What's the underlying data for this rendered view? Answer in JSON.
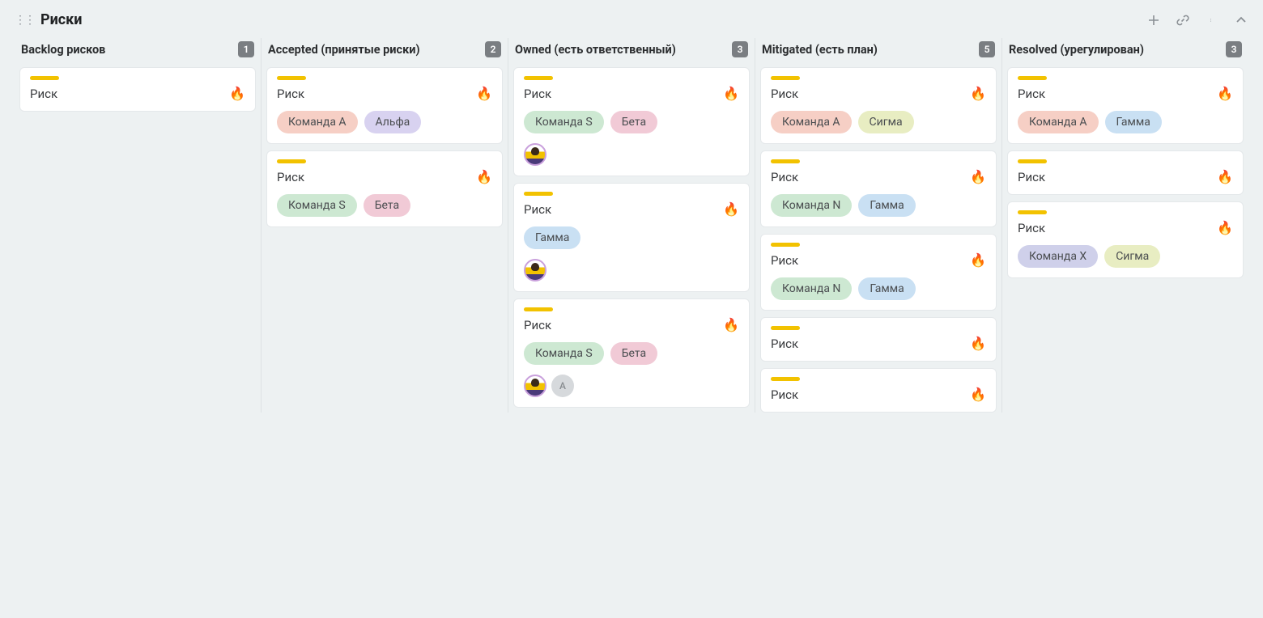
{
  "board": {
    "title": "Риски",
    "colors": {
      "background": "#edf1f2",
      "card_bg": "#ffffff",
      "card_border": "#e4e8ea",
      "column_divider": "#dde2e4",
      "count_bg": "#7a7e82",
      "count_fg": "#ffffff",
      "header_icon": "#8a8f94"
    },
    "tag_palette": {
      "team_a": "#f6cfc5",
      "team_s": "#cde8d2",
      "team_n": "#cde8d2",
      "team_x": "#cfd0ea",
      "alpha": "#d8d2f0",
      "beta": "#f1cad6",
      "gamma": "#c9e0f3",
      "sigma": "#e8edc2"
    },
    "accent_default": "#f2c200",
    "fire_emoji": "🔥",
    "columns": [
      {
        "id": "backlog",
        "title": "Backlog рисков",
        "count": "1",
        "cards": [
          {
            "title": "Риск",
            "accent": "#f2c200",
            "fire": true,
            "tags": [],
            "avatars": []
          }
        ]
      },
      {
        "id": "accepted",
        "title": "Accepted (принятые риски)",
        "count": "2",
        "cards": [
          {
            "title": "Риск",
            "accent": "#f2c200",
            "fire": true,
            "tags": [
              {
                "label": "Команда А",
                "k": "team_a"
              },
              {
                "label": "Альфа",
                "k": "alpha"
              }
            ],
            "avatars": []
          },
          {
            "title": "Риск",
            "accent": "#f2c200",
            "fire": true,
            "tags": [
              {
                "label": "Команда S",
                "k": "team_s"
              },
              {
                "label": "Бета",
                "k": "beta"
              }
            ],
            "avatars": []
          }
        ]
      },
      {
        "id": "owned",
        "title": "Owned (есть ответственный)",
        "count": "3",
        "cards": [
          {
            "title": "Риск",
            "accent": "#f2c200",
            "fire": true,
            "tags": [
              {
                "label": "Команда S",
                "k": "team_s"
              },
              {
                "label": "Бета",
                "k": "beta"
              }
            ],
            "avatars": [
              {
                "kind": "person"
              }
            ]
          },
          {
            "title": "Риск",
            "accent": "#f2c200",
            "fire": true,
            "tags": [
              {
                "label": "Гамма",
                "k": "gamma"
              }
            ],
            "avatars": [
              {
                "kind": "person"
              }
            ]
          },
          {
            "title": "Риск",
            "accent": "#f2c200",
            "fire": true,
            "tags": [
              {
                "label": "Команда S",
                "k": "team_s"
              },
              {
                "label": "Бета",
                "k": "beta"
              }
            ],
            "avatars": [
              {
                "kind": "person"
              },
              {
                "kind": "letter",
                "text": "A"
              }
            ]
          }
        ]
      },
      {
        "id": "mitigated",
        "title": "Mitigated (есть план)",
        "count": "5",
        "cards": [
          {
            "title": "Риск",
            "accent": "#f2c200",
            "fire": true,
            "tags": [
              {
                "label": "Команда А",
                "k": "team_a"
              },
              {
                "label": "Сигма",
                "k": "sigma"
              }
            ],
            "avatars": []
          },
          {
            "title": "Риск",
            "accent": "#f2c200",
            "fire": true,
            "tags": [
              {
                "label": "Команда N",
                "k": "team_n"
              },
              {
                "label": "Гамма",
                "k": "gamma"
              }
            ],
            "avatars": []
          },
          {
            "title": "Риск",
            "accent": "#f2c200",
            "fire": true,
            "tags": [
              {
                "label": "Команда N",
                "k": "team_n"
              },
              {
                "label": "Гамма",
                "k": "gamma"
              }
            ],
            "avatars": []
          },
          {
            "title": "Риск",
            "accent": "#f2c200",
            "fire": true,
            "tags": [],
            "avatars": []
          },
          {
            "title": "Риск",
            "accent": "#f2c200",
            "fire": true,
            "tags": [],
            "avatars": []
          }
        ]
      },
      {
        "id": "resolved",
        "title": "Resolved (урегулирован)",
        "count": "3",
        "cards": [
          {
            "title": "Риск",
            "accent": "#f2c200",
            "fire": true,
            "tags": [
              {
                "label": "Команда А",
                "k": "team_a"
              },
              {
                "label": "Гамма",
                "k": "gamma"
              }
            ],
            "avatars": []
          },
          {
            "title": "Риск",
            "accent": "#f2c200",
            "fire": true,
            "tags": [],
            "avatars": []
          },
          {
            "title": "Риск",
            "accent": "#f2c200",
            "fire": true,
            "tags": [
              {
                "label": "Команда X",
                "k": "team_x"
              },
              {
                "label": "Сигма",
                "k": "sigma"
              }
            ],
            "avatars": []
          }
        ]
      }
    ]
  }
}
